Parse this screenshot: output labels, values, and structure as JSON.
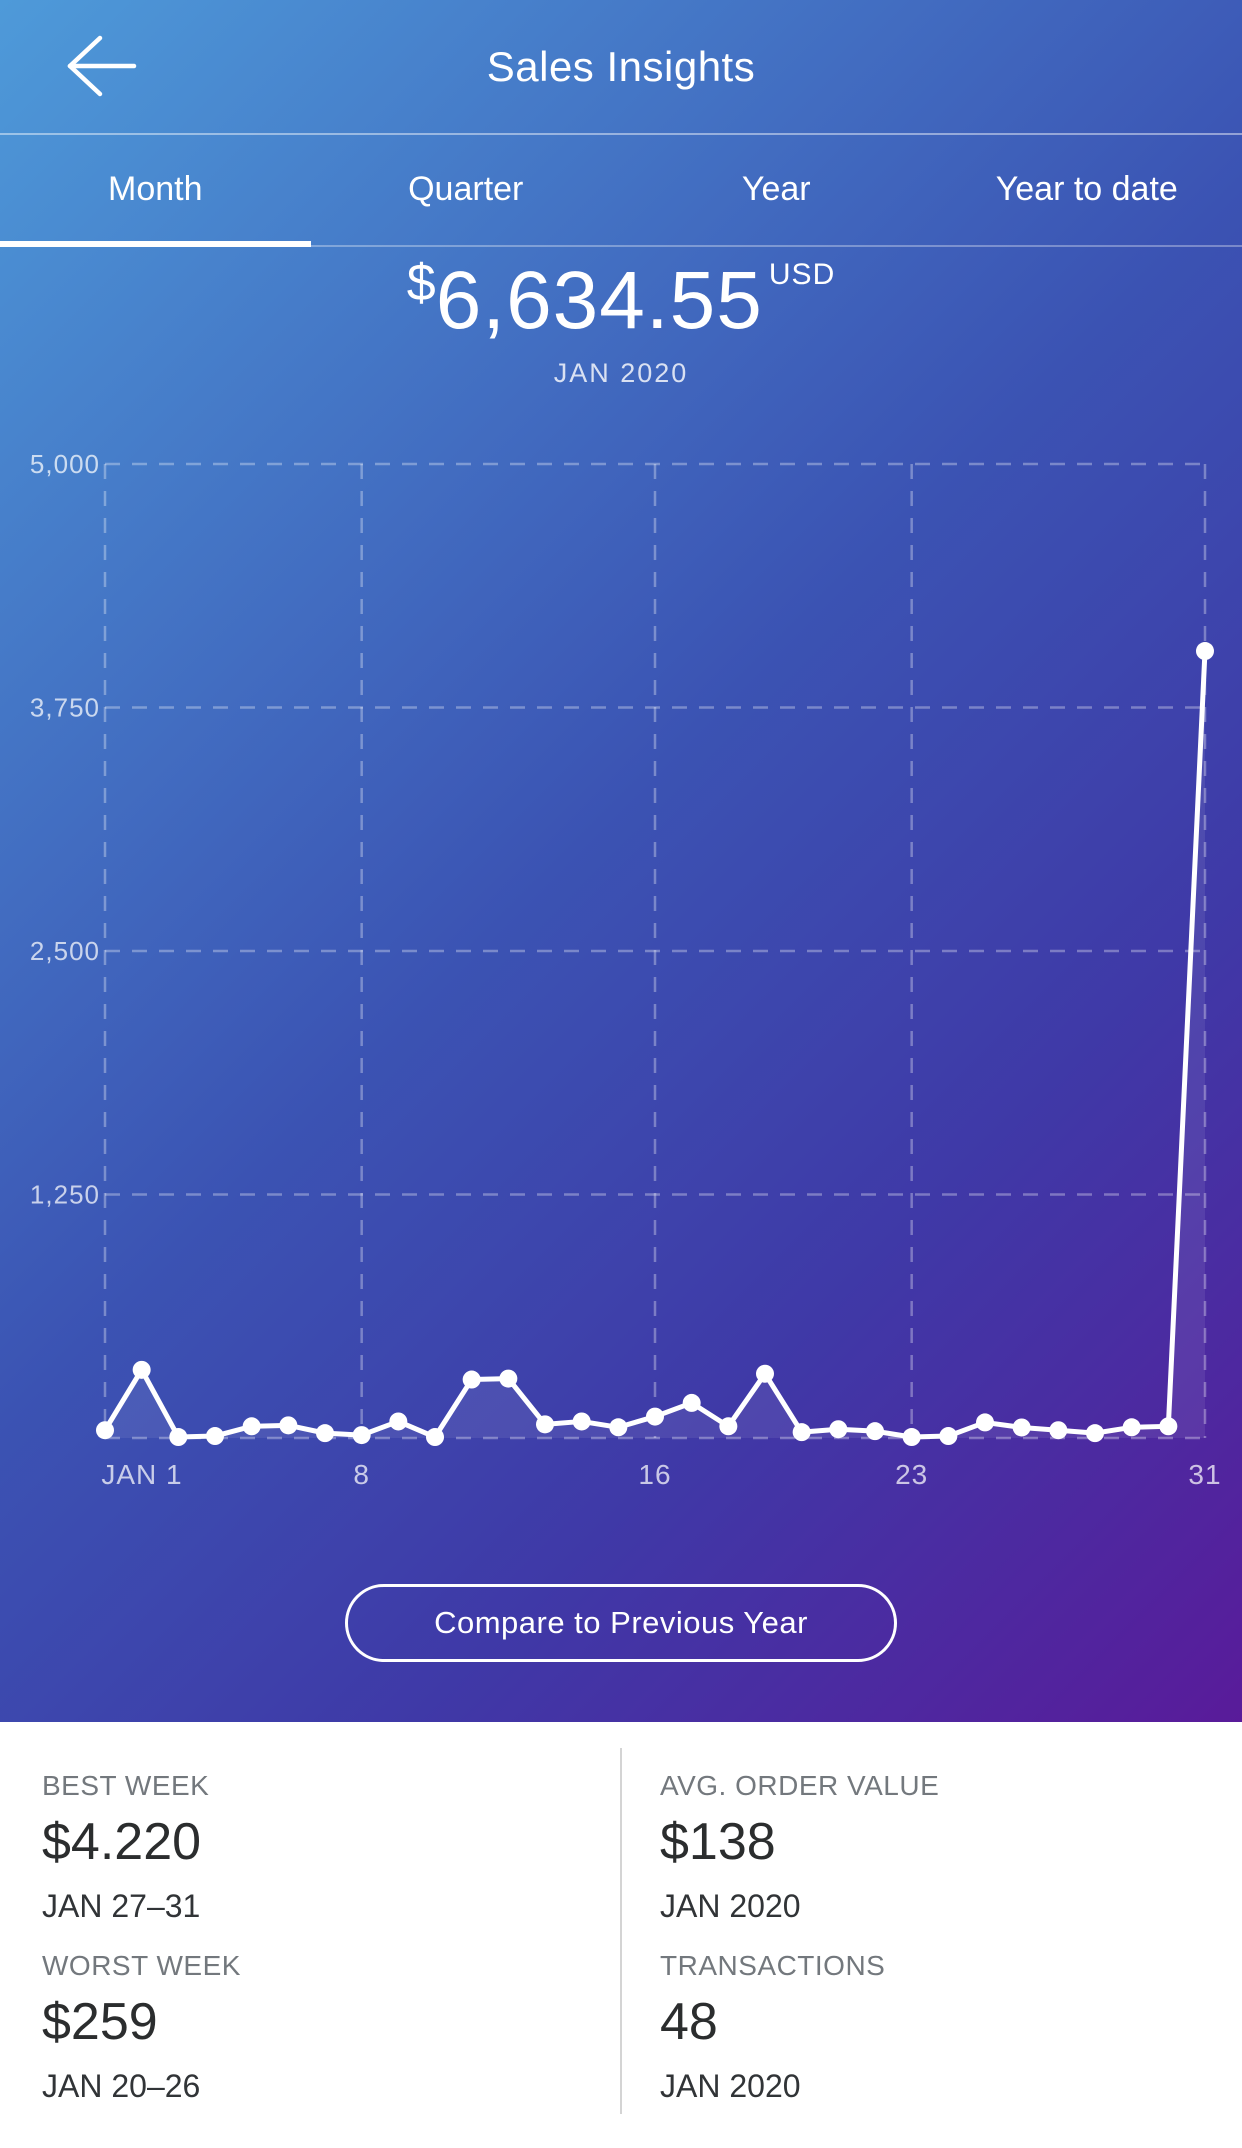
{
  "header": {
    "title": "Sales Insights",
    "back_icon": "arrow-left"
  },
  "tabs": {
    "items": [
      {
        "label": "Month",
        "active": true
      },
      {
        "label": "Quarter",
        "active": false
      },
      {
        "label": "Year",
        "active": false
      },
      {
        "label": "Year to date",
        "active": false
      }
    ]
  },
  "summary": {
    "currency_symbol": "$",
    "amount": "6,634.55",
    "currency_code": "USD",
    "period": "JAN 2020"
  },
  "chart_data": {
    "type": "line",
    "title": "Daily sales for JAN 2020 (USD)",
    "x": [
      1,
      2,
      3,
      4,
      5,
      6,
      7,
      8,
      9,
      10,
      11,
      12,
      13,
      14,
      15,
      16,
      17,
      18,
      19,
      20,
      21,
      22,
      23,
      24,
      25,
      26,
      27,
      28,
      29,
      30,
      31
    ],
    "values": [
      40,
      350,
      5,
      10,
      60,
      65,
      25,
      15,
      85,
      5,
      300,
      305,
      70,
      85,
      55,
      110,
      180,
      60,
      330,
      30,
      45,
      35,
      5,
      10,
      80,
      54,
      40,
      25,
      55,
      60,
      4040
    ],
    "ylim": [
      0,
      5000
    ],
    "y_ticks": [
      1250,
      2500,
      3750,
      5000
    ],
    "y_tick_labels": [
      "1,250",
      "2,500",
      "3,750",
      "5,000"
    ],
    "x_tick_days": [
      1,
      8,
      16,
      23,
      31
    ],
    "x_tick_labels": [
      "JAN 1",
      "8",
      "16",
      "23",
      "31"
    ],
    "grid": "dashed",
    "legend": "none",
    "line_color": "#ffffff",
    "point_color": "#ffffff",
    "grid_color": "rgba(255,255,255,0.32)",
    "tick_color": "rgba(255,255,255,0.72)",
    "area_fill": "rgba(255,255,255,0.08)"
  },
  "compare_button": {
    "label": "Compare to Previous Year"
  },
  "stats": {
    "items": [
      {
        "label": "BEST WEEK",
        "value": "$4.220",
        "period": "JAN 27–31"
      },
      {
        "label": "AVG. ORDER VALUE",
        "value": "$138",
        "period": "JAN 2020"
      },
      {
        "label": "WORST WEEK",
        "value": "$259",
        "period": "JAN 20–26"
      },
      {
        "label": "TRANSACTIONS",
        "value": "48",
        "period": "JAN 2020"
      }
    ]
  },
  "colors": {
    "grad-a": "#4e9ad9",
    "grad-b": "#3b53b3",
    "grad-c": "#3f39a7",
    "grad-d": "#591b9a",
    "white-bg": "#ffffff",
    "divider": "#d4d4d4",
    "stat-label": "#73787d",
    "stat-value": "#2b2d2e",
    "stat-sub": "#313437"
  }
}
